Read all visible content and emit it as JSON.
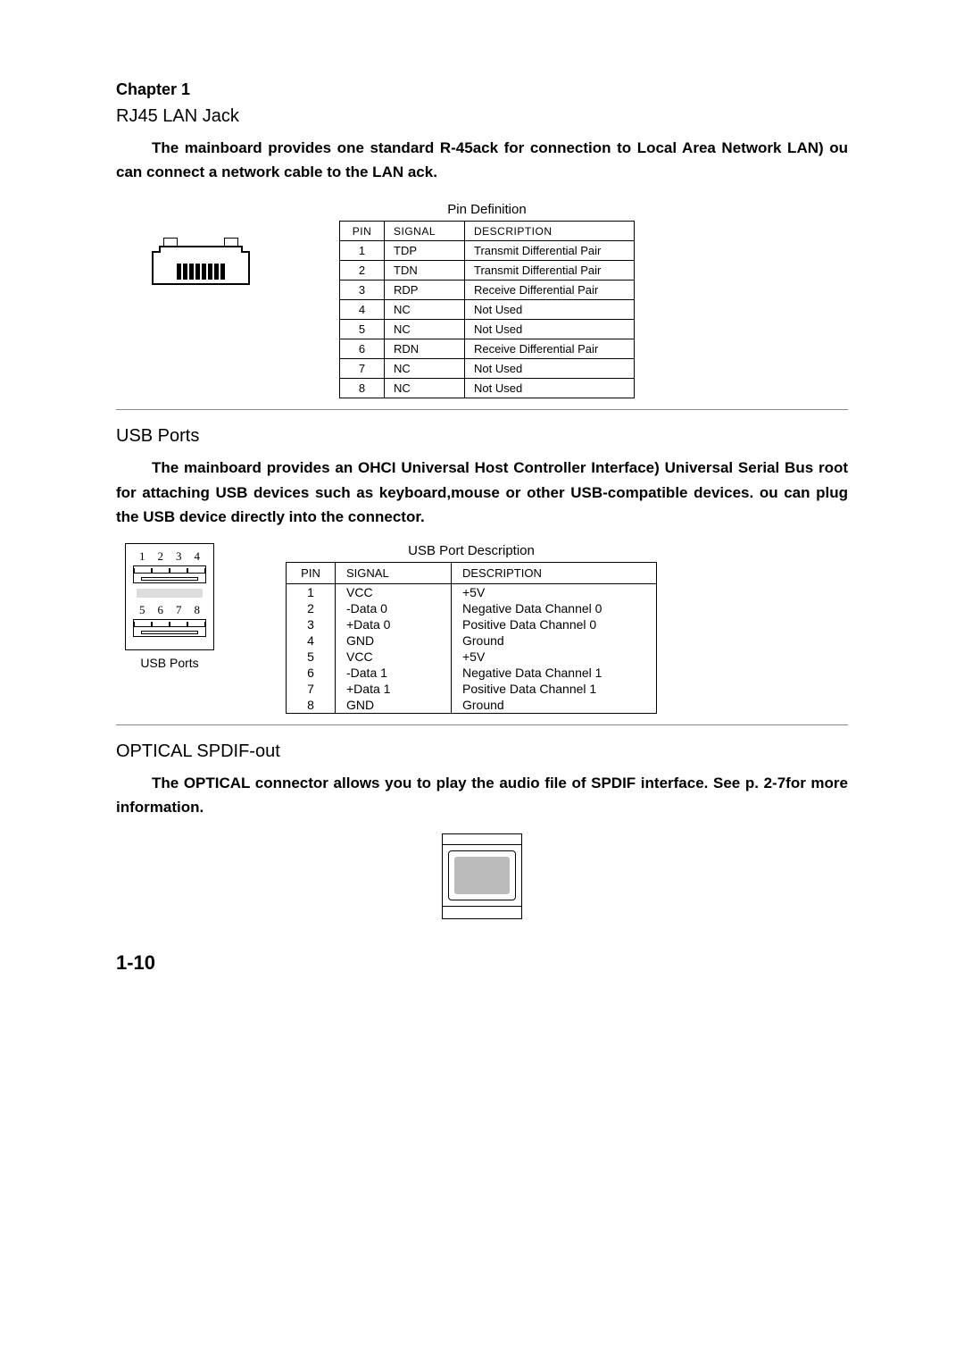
{
  "chapter": "Chapter 1",
  "rj45": {
    "title": "RJ45 LAN Jack",
    "body": "The mainboard provides one standard R-45ack for connection to Local Area Network LAN)  ou can connect a network cable to the LAN ack.",
    "table_caption": "Pin Definition",
    "headers": {
      "pin": "PIN",
      "signal": "SIGNAL",
      "desc": "DESCRIPTION"
    },
    "rows": [
      {
        "pin": "1",
        "signal": "TDP",
        "desc": "Transmit Differential Pair"
      },
      {
        "pin": "2",
        "signal": "TDN",
        "desc": "Transmit Differential Pair"
      },
      {
        "pin": "3",
        "signal": "RDP",
        "desc": "Receive Differential Pair"
      },
      {
        "pin": "4",
        "signal": "NC",
        "desc": "Not Used"
      },
      {
        "pin": "5",
        "signal": "NC",
        "desc": "Not Used"
      },
      {
        "pin": "6",
        "signal": "RDN",
        "desc": "Receive Differential Pair"
      },
      {
        "pin": "7",
        "signal": "NC",
        "desc": "Not Used"
      },
      {
        "pin": "8",
        "signal": "NC",
        "desc": "Not Used"
      }
    ]
  },
  "usb": {
    "title": "USB Ports",
    "body": "The mainboard provides an OHCI Universal Host Controller Interface) Universal Serial Bus root for attaching USB devices such as keyboard,mouse or other USB-compatible devices.  ou can plug the USB device directly into the connector.",
    "table_caption": "USB Port Description",
    "headers": {
      "pin": "PIN",
      "signal": "SIGNAL",
      "desc": "DESCRIPTION"
    },
    "diagram_nums_top": [
      "1",
      "2",
      "3",
      "4"
    ],
    "diagram_nums_bottom": [
      "5",
      "6",
      "7",
      "8"
    ],
    "diagram_caption": "USB Ports",
    "rows": [
      {
        "pin": "1",
        "signal": "VCC",
        "desc": "+5V"
      },
      {
        "pin": "2",
        "signal": "-Data 0",
        "desc": "Negative Data Channel 0"
      },
      {
        "pin": "3",
        "signal": "+Data 0",
        "desc": "Positive Data Channel 0"
      },
      {
        "pin": "4",
        "signal": "GND",
        "desc": "Ground"
      },
      {
        "pin": "5",
        "signal": "VCC",
        "desc": "+5V"
      },
      {
        "pin": "6",
        "signal": "-Data 1",
        "desc": "Negative Data Channel 1"
      },
      {
        "pin": "7",
        "signal": "+Data 1",
        "desc": "Positive Data Channel 1"
      },
      {
        "pin": "8",
        "signal": "GND",
        "desc": "Ground"
      }
    ]
  },
  "optical": {
    "title": "OPTICAL SPDIF-out",
    "body": "The OPTICAL connector allows you to play the audio file of SPDIF interface. See p. 2-7for more information."
  },
  "page_number": "1-10"
}
